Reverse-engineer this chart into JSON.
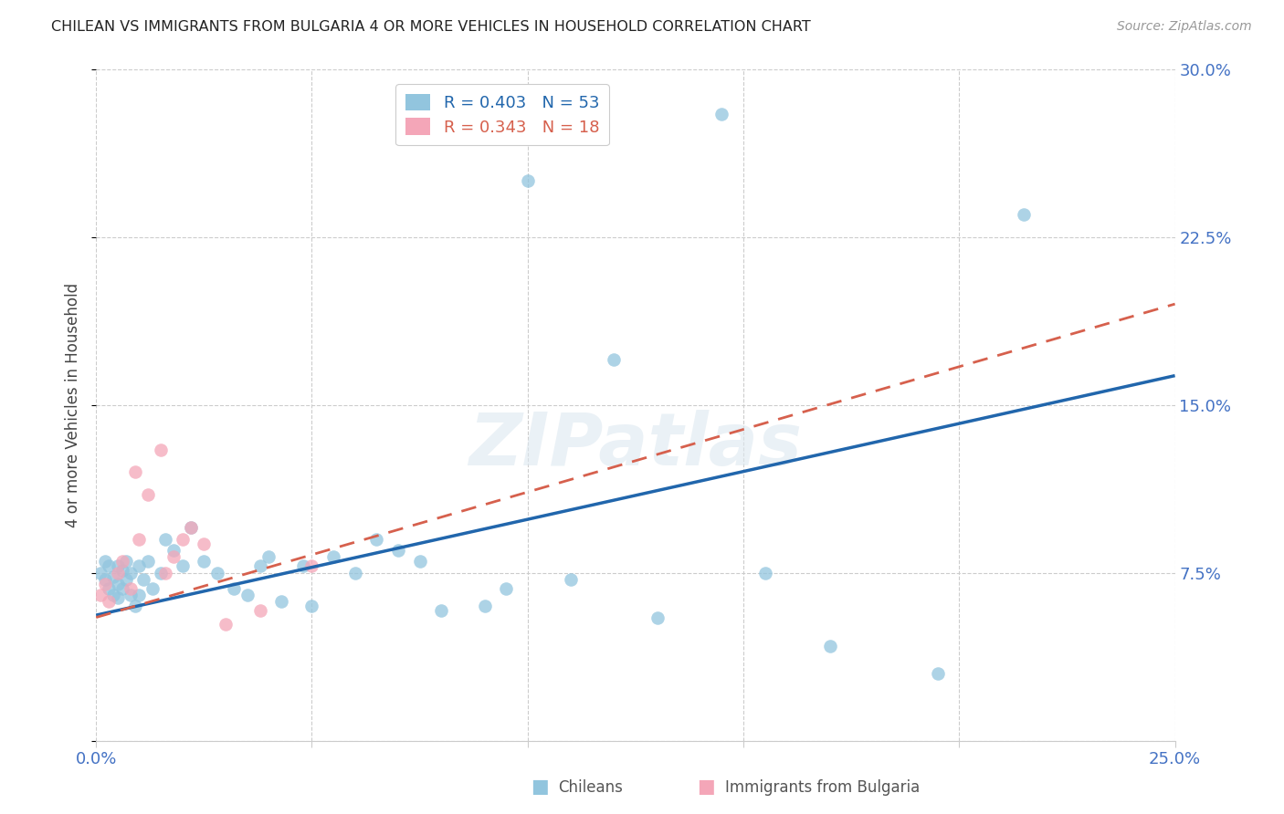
{
  "title": "CHILEAN VS IMMIGRANTS FROM BULGARIA 4 OR MORE VEHICLES IN HOUSEHOLD CORRELATION CHART",
  "source": "Source: ZipAtlas.com",
  "ylabel": "4 or more Vehicles in Household",
  "xmin": 0.0,
  "xmax": 0.25,
  "ymin": 0.0,
  "ymax": 0.3,
  "xticks": [
    0.0,
    0.05,
    0.1,
    0.15,
    0.2,
    0.25
  ],
  "yticks": [
    0.0,
    0.075,
    0.15,
    0.225,
    0.3
  ],
  "ytick_labels_right": [
    "",
    "7.5%",
    "15.0%",
    "22.5%",
    "30.0%"
  ],
  "xtick_labels": [
    "0.0%",
    "",
    "",
    "",
    "",
    "25.0%"
  ],
  "chilean_R": 0.403,
  "chilean_N": 53,
  "bulgarian_R": 0.343,
  "bulgarian_N": 18,
  "chilean_color": "#92c5de",
  "bulgarian_color": "#f4a6b8",
  "chilean_line_color": "#2166ac",
  "bulgarian_line_color": "#d6604d",
  "tick_color": "#4472c4",
  "watermark_text": "ZIPatlas",
  "chilean_x": [
    0.001,
    0.002,
    0.002,
    0.003,
    0.003,
    0.004,
    0.004,
    0.005,
    0.005,
    0.005,
    0.006,
    0.006,
    0.007,
    0.007,
    0.008,
    0.008,
    0.009,
    0.01,
    0.01,
    0.011,
    0.012,
    0.013,
    0.015,
    0.016,
    0.018,
    0.02,
    0.022,
    0.025,
    0.028,
    0.032,
    0.035,
    0.038,
    0.04,
    0.043,
    0.048,
    0.05,
    0.055,
    0.06,
    0.065,
    0.07,
    0.075,
    0.08,
    0.09,
    0.095,
    0.1,
    0.11,
    0.12,
    0.13,
    0.145,
    0.155,
    0.17,
    0.195,
    0.215
  ],
  "chilean_y": [
    0.075,
    0.08,
    0.072,
    0.078,
    0.068,
    0.073,
    0.065,
    0.078,
    0.07,
    0.064,
    0.076,
    0.068,
    0.08,
    0.072,
    0.075,
    0.065,
    0.06,
    0.078,
    0.065,
    0.072,
    0.08,
    0.068,
    0.075,
    0.09,
    0.085,
    0.078,
    0.095,
    0.08,
    0.075,
    0.068,
    0.065,
    0.078,
    0.082,
    0.062,
    0.078,
    0.06,
    0.082,
    0.075,
    0.09,
    0.085,
    0.08,
    0.058,
    0.06,
    0.068,
    0.25,
    0.072,
    0.17,
    0.055,
    0.28,
    0.075,
    0.042,
    0.03,
    0.235
  ],
  "bulgarian_x": [
    0.001,
    0.002,
    0.003,
    0.005,
    0.006,
    0.008,
    0.009,
    0.01,
    0.012,
    0.015,
    0.016,
    0.018,
    0.02,
    0.022,
    0.025,
    0.03,
    0.038,
    0.05
  ],
  "bulgarian_y": [
    0.065,
    0.07,
    0.062,
    0.075,
    0.08,
    0.068,
    0.12,
    0.09,
    0.11,
    0.13,
    0.075,
    0.082,
    0.09,
    0.095,
    0.088,
    0.052,
    0.058,
    0.078
  ],
  "chilean_line_x0": 0.0,
  "chilean_line_x1": 0.25,
  "chilean_line_y0": 0.056,
  "chilean_line_y1": 0.163,
  "bulgarian_line_x0": 0.0,
  "bulgarian_line_x1": 0.25,
  "bulgarian_line_y0": 0.055,
  "bulgarian_line_y1": 0.195
}
